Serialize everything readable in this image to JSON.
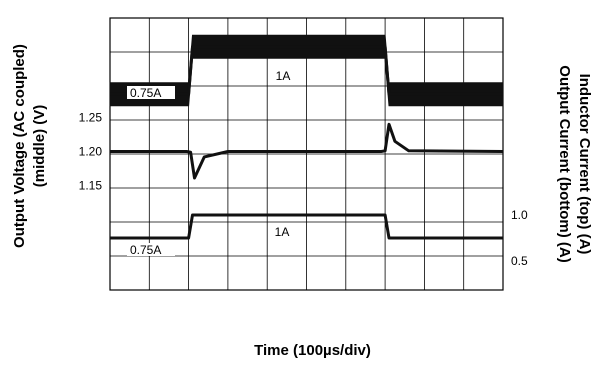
{
  "chart_data": {
    "type": "line",
    "title": "",
    "xlabel": "Time (100µs/div)",
    "ylabel_left": [
      "Output Voltage (AC coupled)",
      "(middle) (V)"
    ],
    "ylabel_right": [
      "Inductor Current (top) (A)",
      "Output Current (bottom) (A)"
    ],
    "grid": true,
    "divisions": {
      "x": 10,
      "y": 8
    },
    "x_range_us": [
      0,
      1000
    ],
    "left_ticks": [
      {
        "label": "1.25",
        "value": 1.25
      },
      {
        "label": "1.20",
        "value": 1.2
      },
      {
        "label": "1.15",
        "value": 1.15
      }
    ],
    "right_ticks": [
      {
        "label": "1.0",
        "value": 1.0
      },
      {
        "label": "0.5",
        "value": 0.5
      }
    ],
    "annotations": [
      {
        "text": "0.75A",
        "trace": "inductor_current"
      },
      {
        "text": "1A",
        "trace": "inductor_current"
      },
      {
        "text": "0.75A",
        "trace": "output_current"
      },
      {
        "text": "1A",
        "trace": "output_current"
      }
    ],
    "series": [
      {
        "name": "Inductor Current (top)",
        "description_unit": "A",
        "x": [
          0,
          200,
          210,
          700,
          710,
          1000
        ],
        "y": [
          0.75,
          0.75,
          1.0,
          1.0,
          0.75,
          0.75
        ],
        "ripple_A": 0.12
      },
      {
        "name": "Output Voltage (middle)",
        "description_unit": "V",
        "x": [
          0,
          195,
          205,
          215,
          240,
          300,
          690,
          700,
          710,
          725,
          760,
          1000
        ],
        "y": [
          1.2,
          1.2,
          1.199,
          1.161,
          1.192,
          1.2,
          1.2,
          1.201,
          1.24,
          1.215,
          1.201,
          1.2
        ]
      },
      {
        "name": "Output Current (bottom)",
        "description_unit": "A",
        "x": [
          0,
          200,
          210,
          700,
          710,
          1000
        ],
        "y": [
          0.75,
          0.75,
          1.0,
          1.0,
          0.75,
          0.75
        ]
      }
    ]
  }
}
